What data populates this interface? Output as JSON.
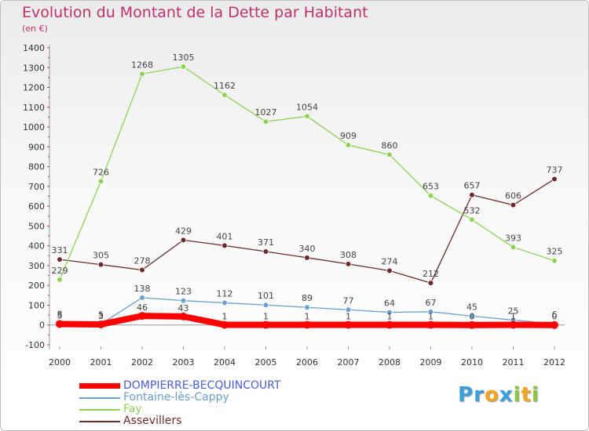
{
  "chart_data": {
    "type": "line",
    "title": "Evolution du Montant de la Dette par Habitant",
    "ylabel": "(en €)",
    "xlabel": "",
    "x": [
      "2000",
      "2001",
      "2002",
      "2003",
      "2004",
      "2005",
      "2006",
      "2007",
      "2008",
      "2009",
      "2010",
      "2011",
      "2012"
    ],
    "yticks": [
      "-100",
      "0",
      "100",
      "200",
      "300",
      "400",
      "500",
      "600",
      "700",
      "800",
      "900",
      "1000",
      "1100",
      "1200",
      "1300",
      "1400"
    ],
    "ylim": [
      -100,
      1400
    ],
    "grid": false,
    "legend": "bottom-left",
    "series": [
      {
        "name": "DOMPIERRE-BECQUINCOURT",
        "color": "#ff0000",
        "values": [
          5,
          3,
          46,
          43,
          1,
          1,
          1,
          1,
          1,
          1,
          0,
          1,
          0
        ],
        "labels": [
          "5",
          "3",
          "46",
          "43",
          "1",
          "1",
          "1",
          "1",
          "1",
          "1",
          "0",
          "1",
          "0"
        ]
      },
      {
        "name": "Fontaine-lès-Cappy",
        "color": "#6a9fd0",
        "values": [
          8,
          5,
          138,
          123,
          112,
          101,
          89,
          77,
          64,
          67,
          45,
          25,
          6
        ],
        "labels": [
          "8",
          "5",
          "138",
          "123",
          "112",
          "101",
          "89",
          "77",
          "64",
          "67",
          "45",
          "25",
          "6"
        ]
      },
      {
        "name": "Fay",
        "color": "#8fd155",
        "values": [
          229,
          726,
          1268,
          1305,
          1162,
          1027,
          1054,
          909,
          860,
          653,
          532,
          393,
          325
        ],
        "labels": [
          "229",
          "726",
          "1268",
          "1305",
          "1162",
          "1027",
          "1054",
          "909",
          "860",
          "653",
          "532",
          "393",
          "325"
        ]
      },
      {
        "name": "Assevillers",
        "color": "#6e2a2a",
        "values": [
          331,
          305,
          278,
          429,
          401,
          371,
          340,
          308,
          274,
          212,
          657,
          606,
          737
        ],
        "labels": [
          "331",
          "305",
          "278",
          "429",
          "401",
          "371",
          "340",
          "308",
          "274",
          "212",
          "657",
          "606",
          "737"
        ]
      }
    ]
  },
  "logo": {
    "letters": [
      "P",
      "r",
      "o",
      "x",
      "i",
      "t",
      "i"
    ],
    "colors": [
      "#3aa0dc",
      "#3aa0dc",
      "#f5a623",
      "#3aa0dc",
      "#8cc63f",
      "#f5a623",
      "#8cc63f"
    ]
  }
}
